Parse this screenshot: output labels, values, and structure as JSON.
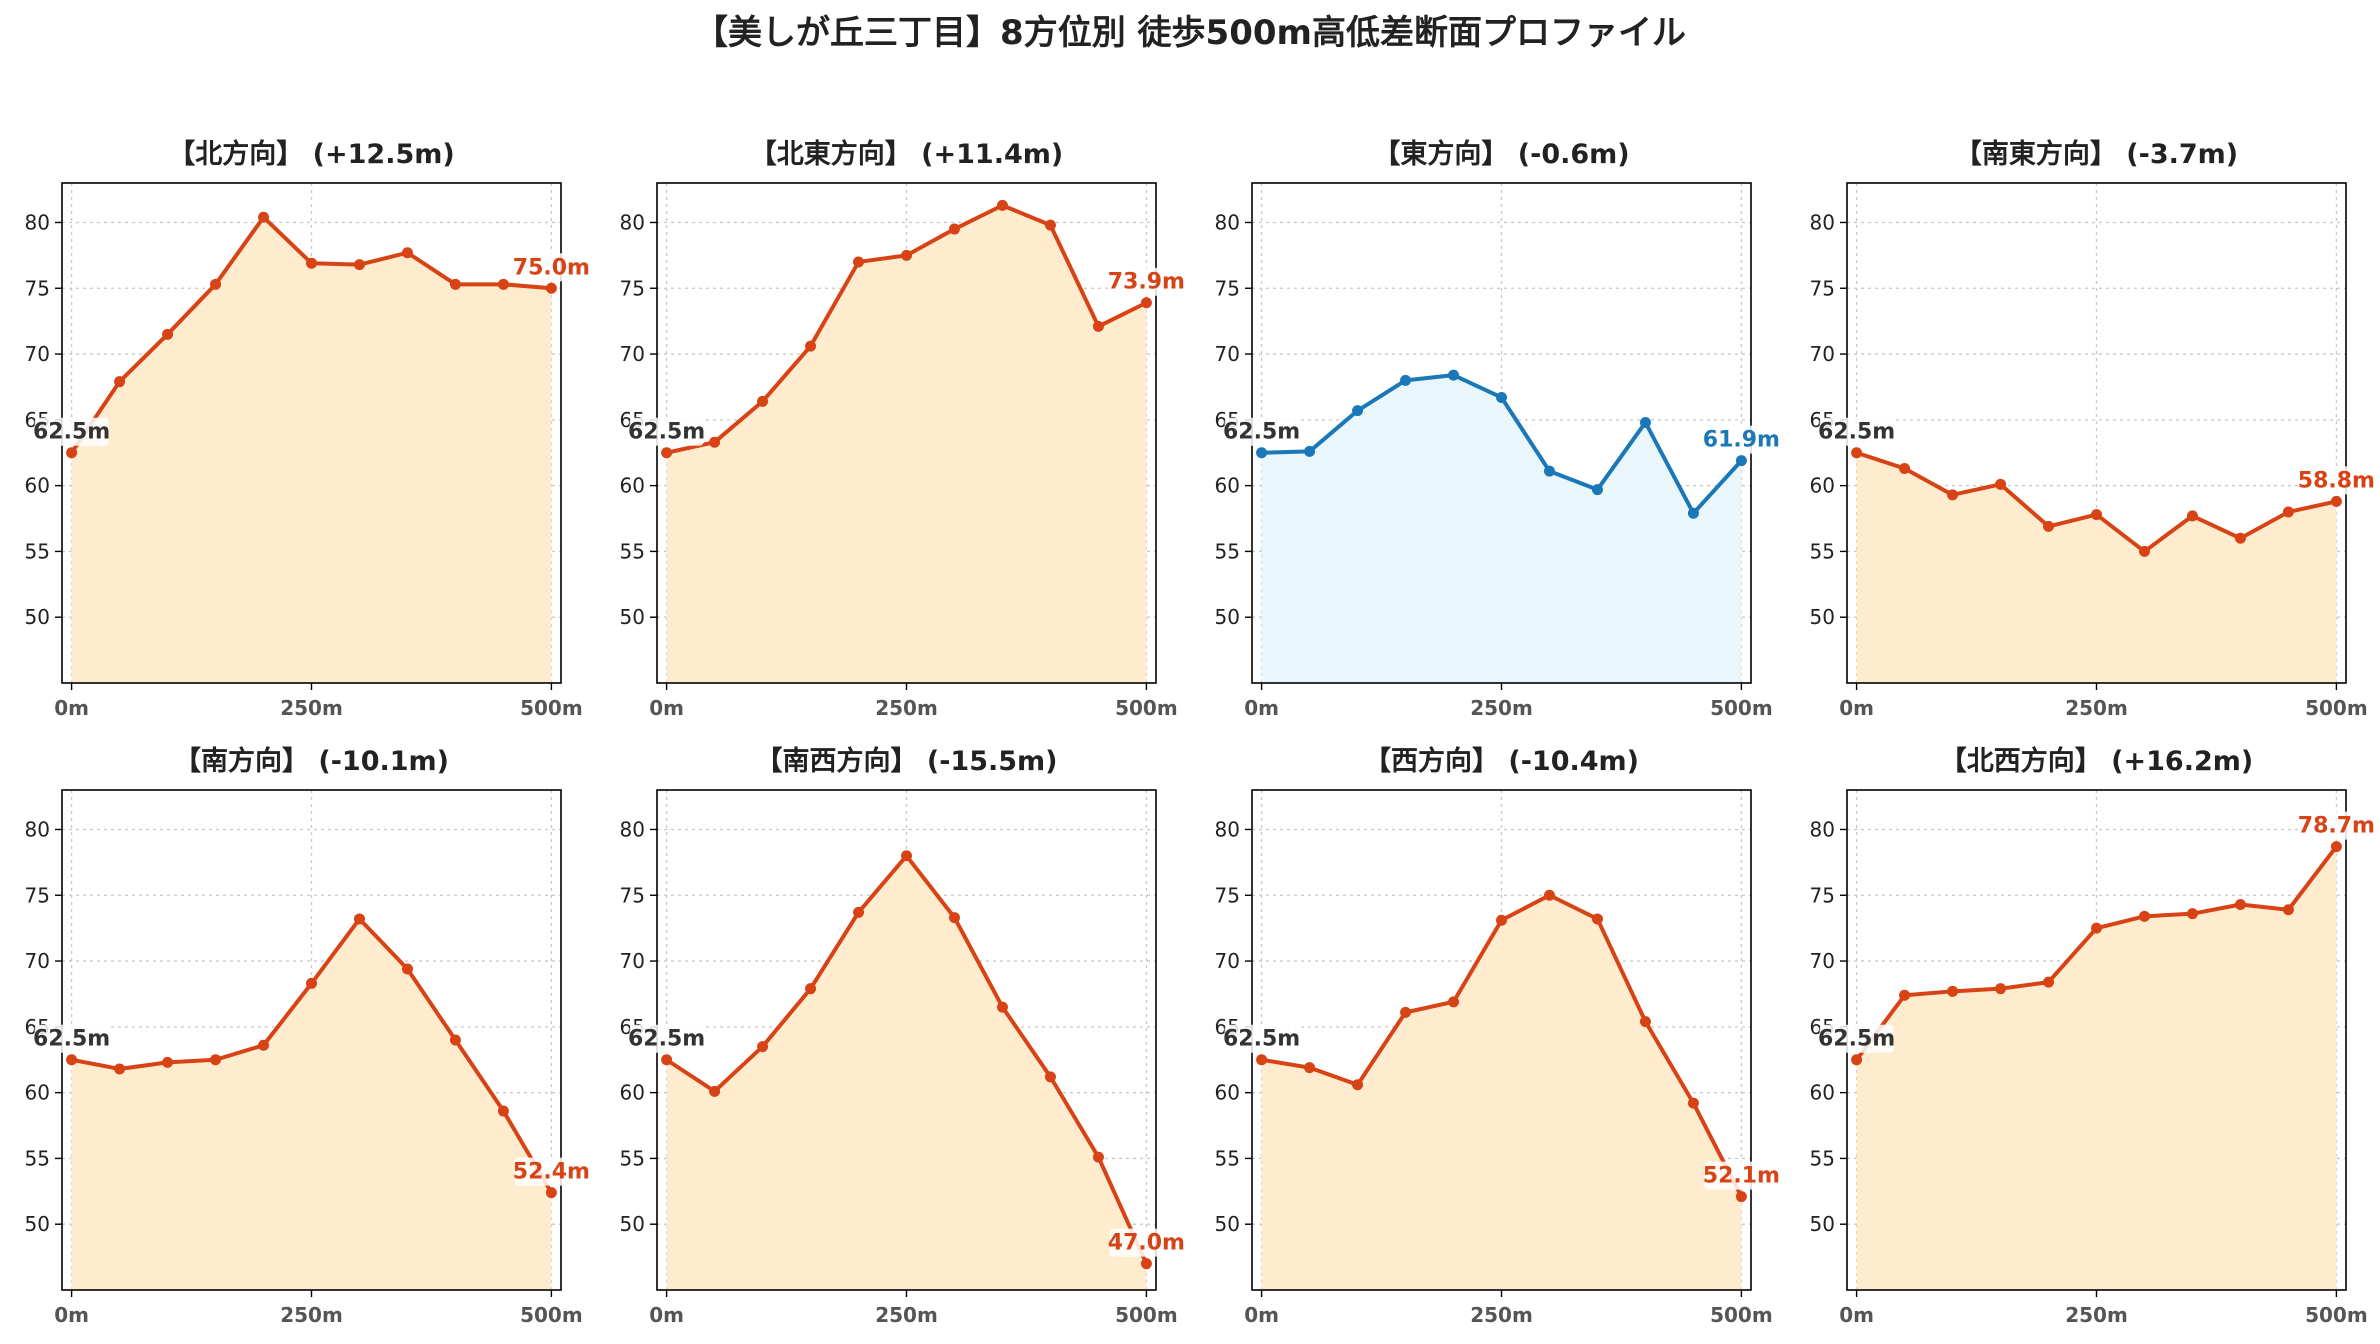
{
  "suptitle": "【美しが丘三丁目】8方位別 徒歩500m高低差断面プロファイル",
  "colors": {
    "rise_line": "#d84315",
    "rise_fill": "#ffeccf",
    "flat_line": "#1a78b8",
    "flat_fill": "#e9f6fb",
    "start_label": "#333333",
    "grid": "#c8c8c8"
  },
  "chart_data": [
    {
      "type": "area",
      "title": "【北方向】 (+12.5m)",
      "x": [
        0,
        50,
        100,
        150,
        200,
        250,
        300,
        350,
        400,
        450,
        500
      ],
      "values": [
        62.5,
        67.9,
        71.5,
        75.3,
        80.4,
        76.9,
        76.8,
        77.7,
        75.3,
        75.3,
        75.0
      ],
      "start_label": "62.5m",
      "end_label": "75.0m",
      "style": "warm",
      "ylim": [
        45,
        83
      ],
      "xlim": [
        -10,
        510
      ],
      "yticks": [
        50,
        55,
        60,
        65,
        70,
        75,
        80
      ],
      "xticks": [
        0,
        250,
        500
      ],
      "xtick_labels": [
        "0m",
        "250m",
        "500m"
      ],
      "grid": true
    },
    {
      "type": "area",
      "title": "【北東方向】 (+11.4m)",
      "x": [
        0,
        50,
        100,
        150,
        200,
        250,
        300,
        350,
        400,
        450,
        500
      ],
      "values": [
        62.5,
        63.3,
        66.4,
        70.6,
        77.0,
        77.5,
        79.5,
        81.3,
        79.8,
        72.1,
        73.9
      ],
      "start_label": "62.5m",
      "end_label": "73.9m",
      "style": "warm",
      "ylim": [
        45,
        83
      ],
      "xlim": [
        -10,
        510
      ],
      "yticks": [
        50,
        55,
        60,
        65,
        70,
        75,
        80
      ],
      "xticks": [
        0,
        250,
        500
      ],
      "xtick_labels": [
        "0m",
        "250m",
        "500m"
      ],
      "grid": true
    },
    {
      "type": "area",
      "title": "【東方向】 (-0.6m)",
      "x": [
        0,
        50,
        100,
        150,
        200,
        250,
        300,
        350,
        400,
        450,
        500
      ],
      "values": [
        62.5,
        62.6,
        65.7,
        68.0,
        68.4,
        66.7,
        61.1,
        59.7,
        64.8,
        57.9,
        61.9
      ],
      "start_label": "62.5m",
      "end_label": "61.9m",
      "style": "cool",
      "ylim": [
        45,
        83
      ],
      "xlim": [
        -10,
        510
      ],
      "yticks": [
        50,
        55,
        60,
        65,
        70,
        75,
        80
      ],
      "xticks": [
        0,
        250,
        500
      ],
      "xtick_labels": [
        "0m",
        "250m",
        "500m"
      ],
      "grid": true
    },
    {
      "type": "area",
      "title": "【南東方向】 (-3.7m)",
      "x": [
        0,
        50,
        100,
        150,
        200,
        250,
        300,
        350,
        400,
        450,
        500
      ],
      "values": [
        62.5,
        61.3,
        59.3,
        60.1,
        56.9,
        57.8,
        55.0,
        57.7,
        56.0,
        58.0,
        58.8
      ],
      "start_label": "62.5m",
      "end_label": "58.8m",
      "style": "warm",
      "ylim": [
        45,
        83
      ],
      "xlim": [
        -10,
        510
      ],
      "yticks": [
        50,
        55,
        60,
        65,
        70,
        75,
        80
      ],
      "xticks": [
        0,
        250,
        500
      ],
      "xtick_labels": [
        "0m",
        "250m",
        "500m"
      ],
      "grid": true
    },
    {
      "type": "area",
      "title": "【南方向】 (-10.1m)",
      "x": [
        0,
        50,
        100,
        150,
        200,
        250,
        300,
        350,
        400,
        450,
        500
      ],
      "values": [
        62.5,
        61.8,
        62.3,
        62.5,
        63.6,
        68.3,
        73.2,
        69.4,
        64.0,
        58.6,
        52.4
      ],
      "start_label": "62.5m",
      "end_label": "52.4m",
      "style": "warm",
      "ylim": [
        45,
        83
      ],
      "xlim": [
        -10,
        510
      ],
      "yticks": [
        50,
        55,
        60,
        65,
        70,
        75,
        80
      ],
      "xticks": [
        0,
        250,
        500
      ],
      "xtick_labels": [
        "0m",
        "250m",
        "500m"
      ],
      "grid": true
    },
    {
      "type": "area",
      "title": "【南西方向】 (-15.5m)",
      "x": [
        0,
        50,
        100,
        150,
        200,
        250,
        300,
        350,
        400,
        450,
        500
      ],
      "values": [
        62.5,
        60.1,
        63.5,
        67.9,
        73.7,
        78.0,
        73.3,
        66.5,
        61.2,
        55.1,
        47.0
      ],
      "start_label": "62.5m",
      "end_label": "47.0m",
      "style": "warm",
      "ylim": [
        45,
        83
      ],
      "xlim": [
        -10,
        510
      ],
      "yticks": [
        50,
        55,
        60,
        65,
        70,
        75,
        80
      ],
      "xticks": [
        0,
        250,
        500
      ],
      "xtick_labels": [
        "0m",
        "250m",
        "500m"
      ],
      "grid": true
    },
    {
      "type": "area",
      "title": "【西方向】 (-10.4m)",
      "x": [
        0,
        50,
        100,
        150,
        200,
        250,
        300,
        350,
        400,
        450,
        500
      ],
      "values": [
        62.5,
        61.9,
        60.6,
        66.1,
        66.9,
        73.1,
        75.0,
        73.2,
        65.4,
        59.2,
        52.1
      ],
      "start_label": "62.5m",
      "end_label": "52.1m",
      "style": "warm",
      "ylim": [
        45,
        83
      ],
      "xlim": [
        -10,
        510
      ],
      "yticks": [
        50,
        55,
        60,
        65,
        70,
        75,
        80
      ],
      "xticks": [
        0,
        250,
        500
      ],
      "xtick_labels": [
        "0m",
        "250m",
        "500m"
      ],
      "grid": true
    },
    {
      "type": "area",
      "title": "【北西方向】 (+16.2m)",
      "x": [
        0,
        50,
        100,
        150,
        200,
        250,
        300,
        350,
        400,
        450,
        500
      ],
      "values": [
        62.5,
        67.4,
        67.7,
        67.9,
        68.4,
        72.5,
        73.4,
        73.6,
        74.3,
        73.9,
        78.7
      ],
      "start_label": "62.5m",
      "end_label": "78.7m",
      "style": "warm",
      "ylim": [
        45,
        83
      ],
      "xlim": [
        -10,
        510
      ],
      "yticks": [
        50,
        55,
        60,
        65,
        70,
        75,
        80
      ],
      "xticks": [
        0,
        250,
        500
      ],
      "xtick_labels": [
        "0m",
        "250m",
        "500m"
      ],
      "grid": true
    }
  ]
}
